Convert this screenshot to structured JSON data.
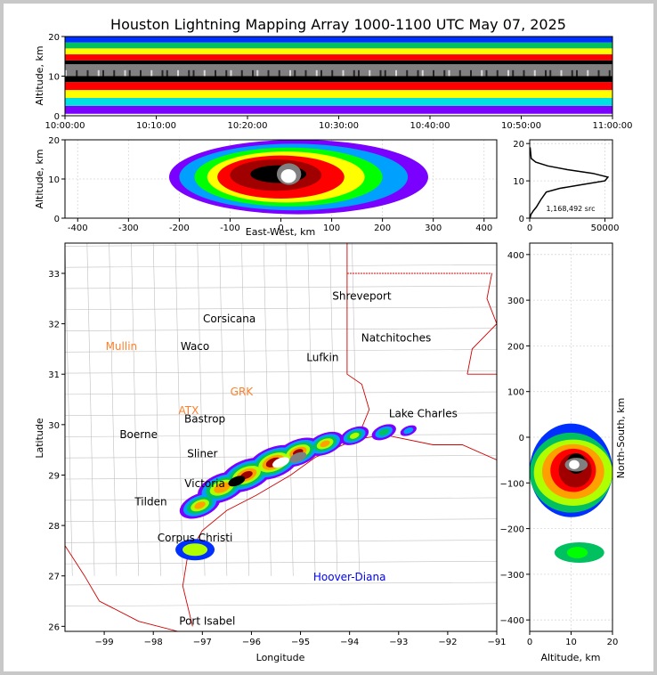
{
  "title": "Houston Lightning Mapping Array 1000-1100 UTC May 07, 2025",
  "colors": {
    "background": "#c8c8c8",
    "density_scale": [
      "#c0c0c0",
      "#7a00ff",
      "#0030ff",
      "#00a0ff",
      "#00e0e0",
      "#00c060",
      "#00ff00",
      "#b0ff00",
      "#ffff00",
      "#ffa000",
      "#ff0000",
      "#a00000",
      "#000000",
      "#808080",
      "#ffffff"
    ],
    "state_borders": "#d00000",
    "county_lines": "#c0c0c0",
    "city_label": "#000000",
    "radar_label": "#ff7f2a",
    "offshore_label": "#0000ff"
  },
  "chart_data": [
    {
      "type": "heatmap",
      "id": "time-altitude",
      "ylabel": "Altitude, km",
      "xlim": [
        "10:00:00",
        "11:00:00"
      ],
      "ylim": [
        0,
        20
      ],
      "xticks": [
        "10:00:00",
        "10:10:00",
        "10:20:00",
        "10:30:00",
        "10:40:00",
        "10:50:00",
        "11:00:00"
      ],
      "yticks": [
        0,
        10,
        20
      ],
      "layers": [
        {
          "altitude_km": [
            0.5,
            2.5
          ],
          "density": 1
        },
        {
          "altitude_km": [
            2.5,
            4.5
          ],
          "density": 4
        },
        {
          "altitude_km": [
            4.5,
            6.5
          ],
          "density": 8
        },
        {
          "altitude_km": [
            6.5,
            8.5
          ],
          "density": 10
        },
        {
          "altitude_km": [
            8.5,
            10.0
          ],
          "density": 12
        },
        {
          "altitude_km": [
            10.0,
            13.0
          ],
          "density": 13
        },
        {
          "altitude_km": [
            13.0,
            14.0
          ],
          "density": 12
        },
        {
          "altitude_km": [
            14.0,
            15.5
          ],
          "density": 10
        },
        {
          "altitude_km": [
            15.5,
            17.0
          ],
          "density": 8
        },
        {
          "altitude_km": [
            17.0,
            18.5
          ],
          "density": 5
        },
        {
          "altitude_km": [
            18.5,
            20.0
          ],
          "density": 2
        }
      ]
    },
    {
      "type": "heatmap",
      "id": "east-west-altitude",
      "xlabel": "East-West, km",
      "ylabel": "Altitude, km",
      "xlim": [
        -425,
        425
      ],
      "ylim": [
        0,
        20
      ],
      "xticks": [
        -400,
        -300,
        -200,
        -100,
        0,
        100,
        200,
        300,
        400
      ],
      "yticks": [
        0,
        10,
        20
      ],
      "blobs": [
        {
          "x": [
            -220,
            290
          ],
          "y": [
            1,
            20
          ],
          "density": 1
        },
        {
          "x": [
            -200,
            250
          ],
          "y": [
            2,
            19
          ],
          "density": 3
        },
        {
          "x": [
            -170,
            200
          ],
          "y": [
            3,
            18
          ],
          "density": 6
        },
        {
          "x": [
            -145,
            165
          ],
          "y": [
            4,
            17
          ],
          "density": 8
        },
        {
          "x": [
            -125,
            125
          ],
          "y": [
            5,
            16
          ],
          "density": 10
        },
        {
          "x": [
            -100,
            80
          ],
          "y": [
            7,
            15
          ],
          "density": 11
        },
        {
          "x": [
            -60,
            50
          ],
          "y": [
            9,
            13.5
          ],
          "density": 12
        },
        {
          "x": [
            -8,
            40
          ],
          "y": [
            8.5,
            14
          ],
          "density": 13
        },
        {
          "x": [
            0,
            30
          ],
          "y": [
            9,
            12.5
          ],
          "density": 14
        }
      ]
    },
    {
      "type": "line",
      "id": "altitude-histogram",
      "xlim": [
        0,
        55000
      ],
      "ylim": [
        0,
        21
      ],
      "xticks": [
        0,
        50000
      ],
      "xtick_labels": [
        "0",
        "50000"
      ],
      "yticks": [
        0,
        10,
        20
      ],
      "annotation": "1,168,492 src",
      "x": [
        200,
        800,
        2500,
        4500,
        6000,
        7500,
        11000,
        20000,
        35000,
        50000,
        52000,
        42000,
        25000,
        12000,
        4000,
        1000,
        300
      ],
      "y": [
        0,
        1,
        2,
        3,
        4,
        5,
        7,
        8,
        9,
        10,
        11,
        12,
        13,
        14,
        15,
        16,
        19
      ]
    },
    {
      "type": "heatmap",
      "id": "plan-view",
      "xlabel": "Longitude",
      "ylabel": "Latitude",
      "xlim": [
        -99.8,
        -91.0
      ],
      "ylim": [
        25.9,
        33.6
      ],
      "xticks": [
        -99,
        -98,
        -97,
        -96,
        -95,
        -94,
        -93,
        -92,
        -91
      ],
      "yticks": [
        26,
        27,
        28,
        29,
        30,
        31,
        32,
        33
      ],
      "places": [
        {
          "name": "Shreveport",
          "lon": -93.75,
          "lat": 32.55,
          "kind": "city"
        },
        {
          "name": "Corsicana",
          "lon": -96.45,
          "lat": 32.1,
          "kind": "city"
        },
        {
          "name": "Mullin",
          "lon": -98.65,
          "lat": 31.55,
          "kind": "radar"
        },
        {
          "name": "Waco",
          "lon": -97.15,
          "lat": 31.55,
          "kind": "city"
        },
        {
          "name": "Natchitoches",
          "lon": -93.05,
          "lat": 31.72,
          "kind": "city"
        },
        {
          "name": "Lufkin",
          "lon": -94.55,
          "lat": 31.33,
          "kind": "city"
        },
        {
          "name": "GRK",
          "lon": -96.2,
          "lat": 30.65,
          "kind": "radar"
        },
        {
          "name": "ATX",
          "lon": -97.28,
          "lat": 30.28,
          "kind": "radar"
        },
        {
          "name": "Bastrop",
          "lon": -96.95,
          "lat": 30.11,
          "kind": "city"
        },
        {
          "name": "Lake Charles",
          "lon": -92.5,
          "lat": 30.22,
          "kind": "city"
        },
        {
          "name": "Boerne",
          "lon": -98.3,
          "lat": 29.8,
          "kind": "city"
        },
        {
          "name": "Sliner",
          "lon": -97.0,
          "lat": 29.42,
          "kind": "city"
        },
        {
          "name": "Victoria",
          "lon": -96.95,
          "lat": 28.83,
          "kind": "city"
        },
        {
          "name": "Tilden",
          "lon": -98.05,
          "lat": 28.47,
          "kind": "city"
        },
        {
          "name": "Corpus Christi",
          "lon": -97.15,
          "lat": 27.75,
          "kind": "city"
        },
        {
          "name": "Hoover-Diana",
          "lon": -94.0,
          "lat": 26.98,
          "kind": "offshore"
        },
        {
          "name": "Port Isabel",
          "lon": -96.9,
          "lat": 26.1,
          "kind": "city"
        }
      ],
      "storm_axis": [
        {
          "lon": -97.05,
          "lat": 28.4,
          "width": 0.5,
          "density": 9
        },
        {
          "lon": -96.6,
          "lat": 28.75,
          "width": 0.6,
          "density": 10
        },
        {
          "lon": -96.1,
          "lat": 29.0,
          "width": 0.65,
          "density": 11
        },
        {
          "lon": -95.55,
          "lat": 29.25,
          "width": 0.65,
          "density": 12
        },
        {
          "lon": -95.05,
          "lat": 29.45,
          "width": 0.55,
          "density": 11
        },
        {
          "lon": -94.5,
          "lat": 29.62,
          "width": 0.45,
          "density": 9
        },
        {
          "lon": -93.9,
          "lat": 29.78,
          "width": 0.35,
          "density": 7
        },
        {
          "lon": -93.3,
          "lat": 29.85,
          "width": 0.3,
          "density": 5
        },
        {
          "lon": -92.8,
          "lat": 29.88,
          "width": 0.2,
          "density": 3
        }
      ],
      "cores": [
        {
          "lon": -95.4,
          "lat": 29.25,
          "density": 14
        },
        {
          "lon": -95.05,
          "lat": 29.35,
          "density": 13
        },
        {
          "lon": -96.3,
          "lat": 28.88,
          "density": 12
        }
      ],
      "secondary_cell": {
        "lon": -97.15,
        "lat": 27.52,
        "size": 0.3,
        "density": 7
      }
    },
    {
      "type": "heatmap",
      "id": "altitude-north-south",
      "xlabel": "Altitude, km",
      "ylabel": "North-South, km",
      "xlim": [
        0,
        20
      ],
      "ylim": [
        -425,
        425
      ],
      "xticks": [
        0,
        10,
        20
      ],
      "yticks": [
        -400,
        -300,
        -200,
        -100,
        0,
        100,
        200,
        300,
        400
      ],
      "blobs": [
        {
          "x": [
            0,
            20
          ],
          "y": [
            -175,
            30
          ],
          "density": 2
        },
        {
          "x": [
            0,
            20
          ],
          "y": [
            -165,
            10
          ],
          "density": 5
        },
        {
          "x": [
            1,
            20
          ],
          "y": [
            -150,
            -5
          ],
          "density": 7
        },
        {
          "x": [
            3,
            18
          ],
          "y": [
            -135,
            -15
          ],
          "density": 9
        },
        {
          "x": [
            5,
            16
          ],
          "y": [
            -120,
            -25
          ],
          "density": 10
        },
        {
          "x": [
            7,
            15
          ],
          "y": [
            -110,
            -35
          ],
          "density": 11
        },
        {
          "x": [
            9,
            13.5
          ],
          "y": [
            -80,
            -35
          ],
          "density": 12
        },
        {
          "x": [
            8.5,
            14
          ],
          "y": [
            -75,
            -45
          ],
          "density": 13
        },
        {
          "x": [
            9.5,
            12
          ],
          "y": [
            -70,
            -50
          ],
          "density": 14
        },
        {
          "x": [
            6,
            18
          ],
          "y": [
            -275,
            -230
          ],
          "density": 5
        },
        {
          "x": [
            9,
            14
          ],
          "y": [
            -265,
            -240
          ],
          "density": 6
        }
      ]
    }
  ]
}
